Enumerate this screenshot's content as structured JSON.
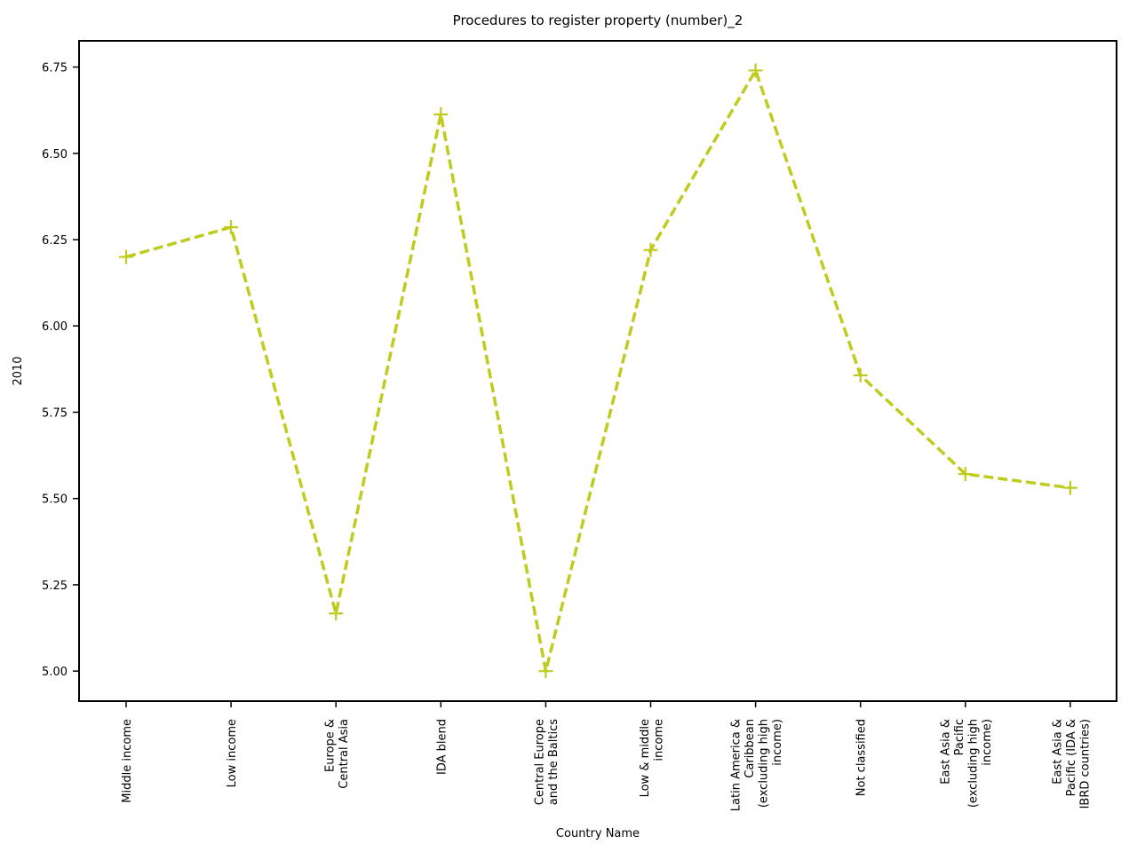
{
  "chart_data": {
    "type": "line",
    "title": "Procedures to register property (number)_2",
    "xlabel": "Country Name",
    "ylabel": "2010",
    "categories": [
      "Middle income",
      "Low income",
      "Europe &\nCentral Asia",
      "IDA blend",
      "Central Europe\nand the Baltics",
      "Low & middle\nincome",
      "Latin America &\nCaribbean\n(excluding high\nincome)",
      "Not classified",
      "East Asia &\nPacific\n(excluding high\nincome)",
      "East Asia &\nPacific (IDA &\nIBRD countries)"
    ],
    "series": [
      {
        "values": [
          6.2,
          6.286,
          5.167,
          6.613,
          5.0,
          6.22,
          6.74,
          5.857,
          5.571,
          5.531
        ],
        "color": "#bfcc1f",
        "line_style": "dashed",
        "marker": "plus"
      }
    ],
    "yticks": [
      "5.00",
      "5.25",
      "5.50",
      "5.75",
      "6.00",
      "6.25",
      "6.50",
      "6.75"
    ],
    "ylim": [
      4.913,
      6.826
    ],
    "grid": false,
    "legend": "none"
  }
}
